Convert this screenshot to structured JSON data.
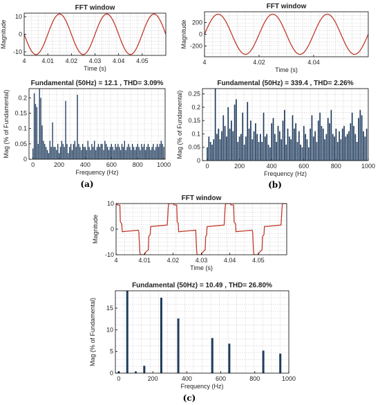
{
  "panel_labels": [
    "(a)",
    "(b)",
    "(c)"
  ],
  "colors": {
    "waveform": "#c0392b",
    "bars": "#1f3b5c",
    "grid": "#c9c9c9",
    "axis": "#000000"
  },
  "chart_data": [
    {
      "id": "a-top",
      "type": "line",
      "title": "FFT window",
      "xlabel": "Time (s)",
      "ylabel": "Magnitude",
      "xlim": [
        4.0,
        4.06
      ],
      "ylim": [
        -12,
        12
      ],
      "xticks": [
        4,
        4.01,
        4.02,
        4.03,
        4.04,
        4.05
      ],
      "xtick_labels": [
        "4",
        "4.01",
        "4.02",
        "4.03",
        "4.04",
        "4.05"
      ],
      "yticks": [
        -10,
        0,
        10
      ],
      "ytick_labels": [
        "-10",
        "0",
        "10"
      ],
      "grid": true,
      "series": [
        {
          "waveform": "sine",
          "amplitude": 11.5,
          "frequency_hz": 50,
          "phase": 3.14159
        }
      ]
    },
    {
      "id": "a-bottom",
      "type": "bar",
      "title": "Fundamental (50Hz) = 12.1 , THD= 3.09%",
      "xlabel": "Frequency (Hz)",
      "ylabel": "Mag (% of Fundamental)",
      "xlim": [
        -30,
        1010
      ],
      "ylim": [
        0,
        0.23
      ],
      "xticks": [
        0,
        200,
        400,
        600,
        800,
        1000
      ],
      "xtick_labels": [
        "0",
        "200",
        "400",
        "600",
        "800",
        "1000"
      ],
      "yticks": [
        0,
        0.05,
        0.1,
        0.15,
        0.2
      ],
      "ytick_labels": [
        "0",
        "0.05",
        "0.1",
        "0.15",
        "0.2"
      ],
      "grid": true,
      "x": [
        0,
        10,
        20,
        30,
        40,
        50,
        60,
        70,
        80,
        90,
        100,
        110,
        120,
        130,
        140,
        150,
        160,
        170,
        180,
        190,
        200,
        210,
        220,
        230,
        240,
        250,
        260,
        270,
        280,
        290,
        300,
        310,
        320,
        330,
        340,
        350,
        360,
        370,
        380,
        390,
        400,
        410,
        420,
        430,
        440,
        450,
        460,
        470,
        480,
        490,
        500,
        510,
        520,
        530,
        540,
        550,
        560,
        570,
        580,
        590,
        600,
        610,
        620,
        630,
        640,
        650,
        660,
        670,
        680,
        690,
        700,
        710,
        720,
        730,
        740,
        750,
        760,
        770,
        780,
        790,
        800,
        810,
        820,
        830,
        840,
        850,
        860,
        870,
        880,
        890,
        900,
        910,
        920,
        930,
        940,
        950,
        960,
        970,
        980,
        990,
        1000
      ],
      "values": [
        0.035,
        0.215,
        0.18,
        0.17,
        0.05,
        0.23,
        0.2,
        0.11,
        0.06,
        0.05,
        0.04,
        0.03,
        0.02,
        0.06,
        0.04,
        0.12,
        0.04,
        0.04,
        0.03,
        0.05,
        0.02,
        0.04,
        0.06,
        0.05,
        0.04,
        0.19,
        0.05,
        0.02,
        0.04,
        0.05,
        0.03,
        0.05,
        0.06,
        0.04,
        0.21,
        0.05,
        0.04,
        0.03,
        0.05,
        0.04,
        0.04,
        0.03,
        0.06,
        0.04,
        0.03,
        0.05,
        0.04,
        0.06,
        0.03,
        0.04,
        0.05,
        0.04,
        0.05,
        0.05,
        0.03,
        0.06,
        0.05,
        0.04,
        0.03,
        0.04,
        0.05,
        0.04,
        0.03,
        0.05,
        0.04,
        0.05,
        0.04,
        0.03,
        0.05,
        0.04,
        0.06,
        0.03,
        0.04,
        0.05,
        0.04,
        0.03,
        0.05,
        0.04,
        0.03,
        0.04,
        0.05,
        0.04,
        0.03,
        0.05,
        0.04,
        0.05,
        0.03,
        0.04,
        0.05,
        0.04,
        0.03,
        0.04,
        0.05,
        0.03,
        0.04,
        0.05,
        0.04,
        0.05,
        0.06,
        0.05,
        0.04
      ]
    },
    {
      "id": "b-top",
      "type": "line",
      "title": "FFT window",
      "xlabel": "Time (s)",
      "ylabel": "Magnitude",
      "xlim": [
        4.0,
        4.06
      ],
      "ylim": [
        -380,
        380
      ],
      "xticks": [
        4,
        4.02,
        4.04
      ],
      "xtick_labels": [
        "4",
        "4.02",
        "4.04"
      ],
      "yticks": [
        -200,
        0,
        200
      ],
      "ytick_labels": [
        "-200",
        "0",
        "200"
      ],
      "grid": true,
      "series": [
        {
          "waveform": "sine",
          "amplitude": 339.4,
          "frequency_hz": 50,
          "phase": 0
        }
      ]
    },
    {
      "id": "b-bottom",
      "type": "bar",
      "title": "Fundamental (50Hz) = 339.4 , THD= 2.26%",
      "xlabel": "Frequency (Hz)",
      "ylabel": "Mag (% of Fundamental)",
      "xlim": [
        -30,
        1000
      ],
      "ylim": [
        0,
        0.27
      ],
      "xticks": [
        0,
        200,
        400,
        600,
        800,
        1000
      ],
      "xtick_labels": [
        "0",
        "200",
        "400",
        "600",
        "800",
        "1000"
      ],
      "yticks": [
        0,
        0.05,
        0.1,
        0.15,
        0.2,
        0.25
      ],
      "ytick_labels": [
        "0",
        "0.05",
        "0.1",
        "0.15",
        "0.2",
        "0.25"
      ],
      "grid": true,
      "x": [
        0,
        10,
        20,
        30,
        40,
        50,
        60,
        70,
        80,
        90,
        100,
        110,
        120,
        130,
        140,
        150,
        160,
        170,
        180,
        190,
        200,
        210,
        220,
        230,
        240,
        250,
        260,
        270,
        280,
        290,
        300,
        310,
        320,
        330,
        340,
        350,
        360,
        370,
        380,
        390,
        400,
        410,
        420,
        430,
        440,
        450,
        460,
        470,
        480,
        490,
        500,
        510,
        520,
        530,
        540,
        550,
        560,
        570,
        580,
        590,
        600,
        610,
        620,
        630,
        640,
        650,
        660,
        670,
        680,
        690,
        700,
        710,
        720,
        730,
        740,
        750,
        760,
        770,
        780,
        790,
        800,
        810,
        820,
        830,
        840,
        850,
        860,
        870,
        880,
        890,
        900,
        910,
        920,
        930,
        940,
        950,
        960,
        970,
        980,
        990
      ],
      "values": [
        0.05,
        0.09,
        0.07,
        0.06,
        0.08,
        0.27,
        0.1,
        0.12,
        0.08,
        0.11,
        0.17,
        0.13,
        0.09,
        0.2,
        0.12,
        0.15,
        0.11,
        0.21,
        0.23,
        0.07,
        0.09,
        0.1,
        0.18,
        0.06,
        0.09,
        0.22,
        0.12,
        0.15,
        0.08,
        0.11,
        0.14,
        0.1,
        0.07,
        0.1,
        0.07,
        0.18,
        0.09,
        0.1,
        0.06,
        0.05,
        0.14,
        0.16,
        0.1,
        0.07,
        0.13,
        0.11,
        0.08,
        0.15,
        0.19,
        0.06,
        0.12,
        0.09,
        0.08,
        0.17,
        0.12,
        0.14,
        0.07,
        0.11,
        0.06,
        0.05,
        0.13,
        0.1,
        0.08,
        0.05,
        0.12,
        0.17,
        0.09,
        0.11,
        0.07,
        0.15,
        0.18,
        0.13,
        0.12,
        0.08,
        0.1,
        0.16,
        0.14,
        0.19,
        0.1,
        0.09,
        0.12,
        0.07,
        0.11,
        0.08,
        0.12,
        0.13,
        0.09,
        0.1,
        0.11,
        0.14,
        0.18,
        0.13,
        0.1,
        0.07,
        0.16,
        0.19,
        0.17,
        0.11,
        0.09,
        0.12
      ]
    },
    {
      "id": "c-top",
      "type": "line",
      "title": "FFT window",
      "xlabel": "Time (s)",
      "ylabel": "Magnitude",
      "xlim": [
        4.0,
        4.06
      ],
      "ylim": [
        -10,
        10
      ],
      "xticks": [
        4,
        4.01,
        4.02,
        4.03,
        4.04,
        4.05
      ],
      "xtick_labels": [
        "4",
        "4.01",
        "4.02",
        "4.03",
        "4.04",
        "4.05"
      ],
      "yticks": [
        -10,
        0,
        10
      ],
      "ytick_labels": [
        "-10",
        "0",
        "10"
      ],
      "grid": true,
      "series": [
        {
          "waveform": "quasi-square",
          "amplitude": 10,
          "frequency_hz": 50
        }
      ]
    },
    {
      "id": "c-bottom",
      "type": "bar",
      "title": "Fundamental (50Hz) = 10.49 , THD= 26.80%",
      "xlabel": "Frequency (Hz)",
      "ylabel": "Mag (% of Fundamental)",
      "xlim": [
        -20,
        1000
      ],
      "ylim": [
        0,
        19
      ],
      "xticks": [
        0,
        200,
        400,
        600,
        800,
        1000
      ],
      "xtick_labels": [
        "0",
        "200",
        "400",
        "600",
        "800",
        "1000"
      ],
      "yticks": [
        0,
        5,
        10,
        15
      ],
      "ytick_labels": [
        "0",
        "5",
        "10",
        "15"
      ],
      "grid": true,
      "x": [
        0,
        50,
        100,
        150,
        250,
        350,
        550,
        650,
        850,
        950
      ],
      "values": [
        0.4,
        19,
        0.4,
        1.7,
        17.4,
        12.6,
        8.1,
        6.8,
        5.2,
        4.5
      ]
    }
  ]
}
